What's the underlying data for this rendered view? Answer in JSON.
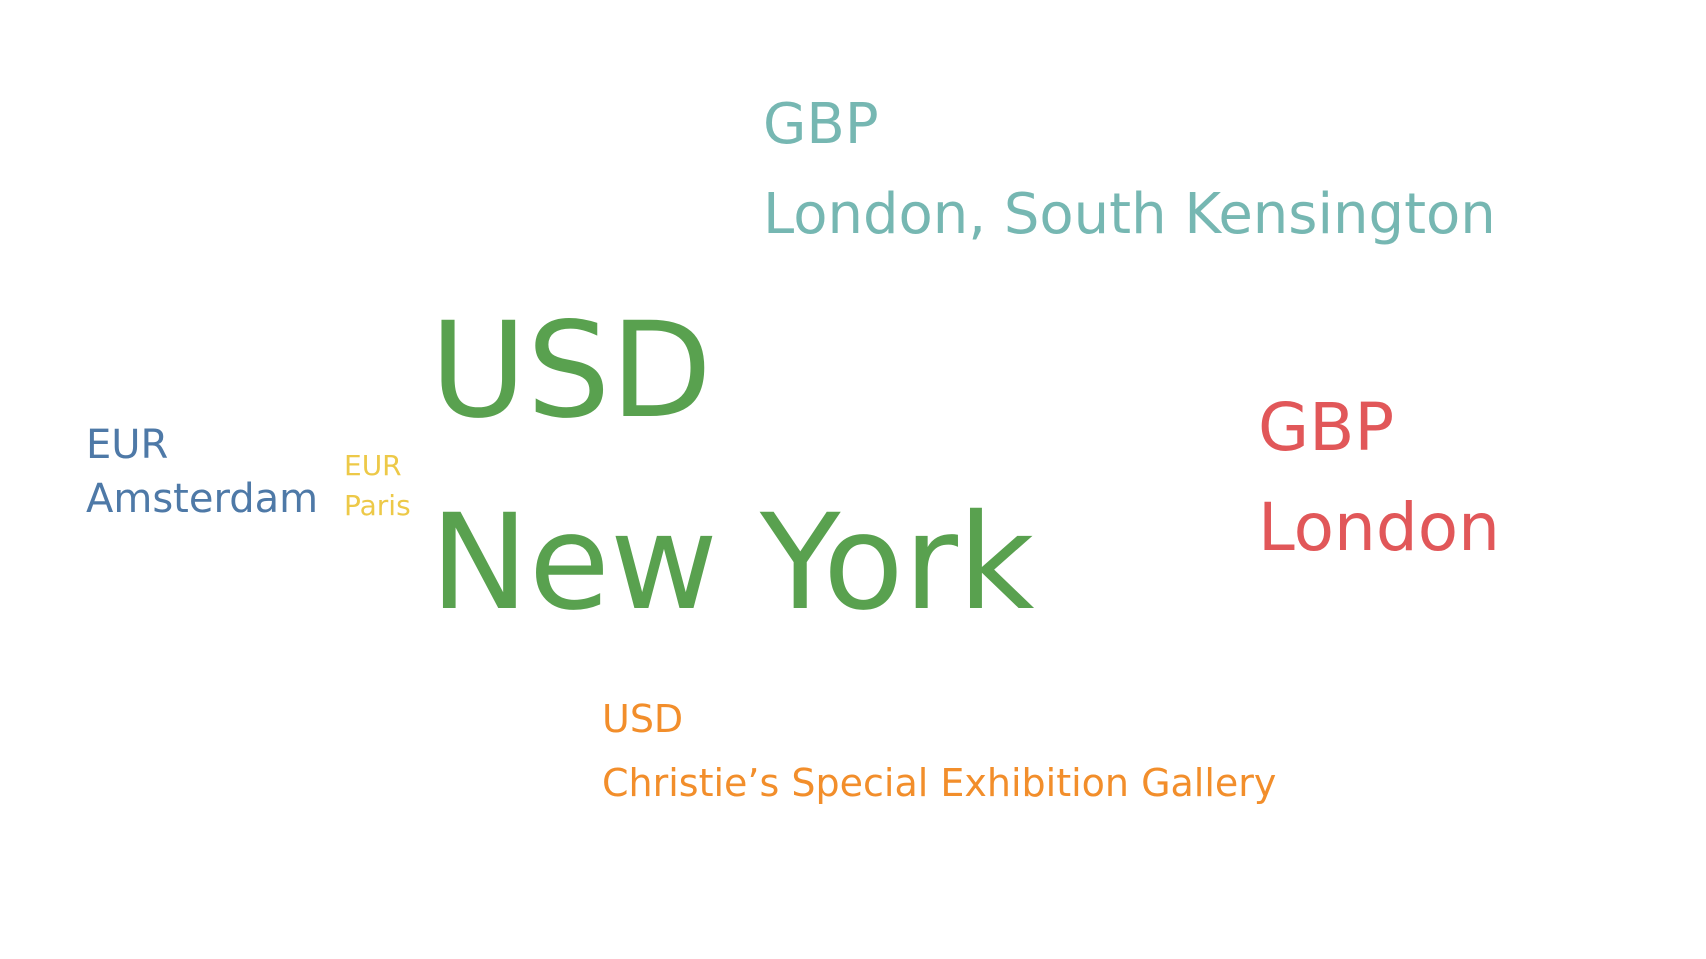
{
  "chart_data": {
    "type": "word-cloud",
    "marks": [
      {
        "currency": "GBP",
        "location": "London, South Kensington",
        "color": "#76b7b2"
      },
      {
        "currency": "USD",
        "location": "New York",
        "color": "#59a14f"
      },
      {
        "currency": "GBP",
        "location": "London",
        "color": "#e15759"
      },
      {
        "currency": "EUR",
        "location": "Amsterdam",
        "color": "#4e79a7"
      },
      {
        "currency": "EUR",
        "location": "Paris",
        "color": "#edc948"
      },
      {
        "currency": "USD",
        "location": "Christie’s Special Exhibition Gallery",
        "color": "#f28e2b"
      }
    ]
  }
}
